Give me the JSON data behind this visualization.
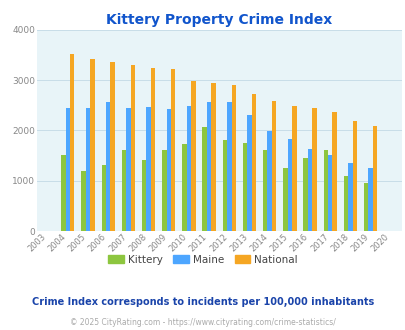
{
  "title": "Kittery Property Crime Index",
  "years": [
    "2003",
    "2004",
    "2005",
    "2006",
    "2007",
    "2008",
    "2009",
    "2010",
    "2011",
    "2012",
    "2013",
    "2014",
    "2015",
    "2016",
    "2017",
    "2018",
    "2019",
    "2020"
  ],
  "kittery": [
    0,
    1510,
    1185,
    1310,
    1610,
    1420,
    1610,
    1720,
    2060,
    1810,
    1750,
    1600,
    1250,
    1445,
    1615,
    1090,
    950,
    0
  ],
  "maine": [
    0,
    2440,
    2440,
    2555,
    2435,
    2460,
    2420,
    2490,
    2560,
    2560,
    2300,
    1995,
    1820,
    1630,
    1510,
    1350,
    1250,
    0
  ],
  "national": [
    0,
    3520,
    3415,
    3355,
    3300,
    3230,
    3215,
    2975,
    2940,
    2905,
    2730,
    2590,
    2490,
    2450,
    2360,
    2190,
    2090,
    0
  ],
  "kittery_color": "#8dc63f",
  "maine_color": "#4da6ff",
  "national_color": "#f5a623",
  "bg_color": "#e8f4f8",
  "ylim": [
    0,
    4000
  ],
  "yticks": [
    0,
    1000,
    2000,
    3000,
    4000
  ],
  "subtitle": "Crime Index corresponds to incidents per 100,000 inhabitants",
  "copyright": "© 2025 CityRating.com - https://www.cityrating.com/crime-statistics/",
  "subtitle_color": "#1a44aa",
  "copyright_color": "#aaaaaa",
  "title_color": "#1155cc",
  "axis_color": "#888888",
  "grid_color": "#c8dde8",
  "bar_width": 0.22,
  "figsize": [
    4.06,
    3.3
  ],
  "dpi": 100
}
